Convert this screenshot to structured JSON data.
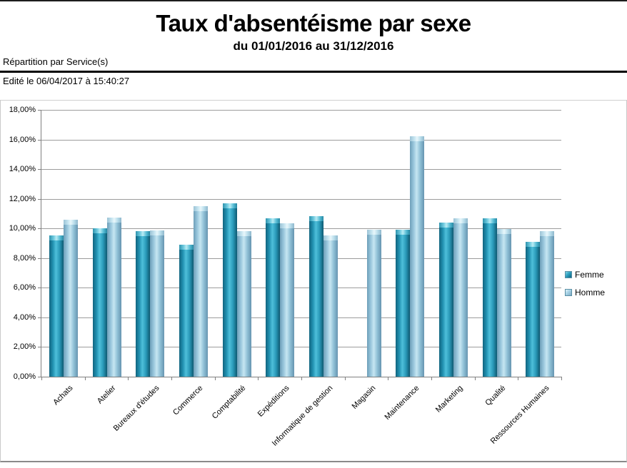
{
  "header": {
    "title": "Taux d'absentéisme par sexe",
    "subtitle": "du 01/01/2016 au 31/12/2016",
    "repartition": "Répartition par Service(s)",
    "edited": "Edité le 06/04/2017 à 15:40:27"
  },
  "chart_data": {
    "type": "bar",
    "title": "Taux d'absentéisme par sexe",
    "subtitle": "du 01/01/2016 au 31/12/2016",
    "categories": [
      "Achats",
      "Atelier",
      "Bureaux d'études",
      "Commerce",
      "Comptabilité",
      "Expéditions",
      "Informatique de gestion",
      "Magasin",
      "Maintenance",
      "Marketing",
      "Qualité",
      "Ressources Humaines"
    ],
    "series": [
      {
        "name": "Femme",
        "color": "#1e88a8",
        "values": [
          9.55,
          10.0,
          9.8,
          8.9,
          11.7,
          10.7,
          10.85,
          null,
          9.9,
          10.4,
          10.7,
          9.1
        ]
      },
      {
        "name": "Homme",
        "color": "#a7d2e6",
        "values": [
          10.6,
          10.75,
          9.85,
          11.5,
          9.8,
          10.35,
          9.55,
          9.9,
          16.2,
          10.7,
          9.95,
          9.8
        ]
      }
    ],
    "ylabel": "",
    "xlabel": "",
    "ylim": [
      0,
      18
    ],
    "ytick_step": 2,
    "ytick_labels": [
      "0,00%",
      "2,00%",
      "4,00%",
      "6,00%",
      "8,00%",
      "10,00%",
      "12,00%",
      "14,00%",
      "16,00%",
      "18,00%"
    ],
    "grid": true,
    "legend_position": "right"
  }
}
